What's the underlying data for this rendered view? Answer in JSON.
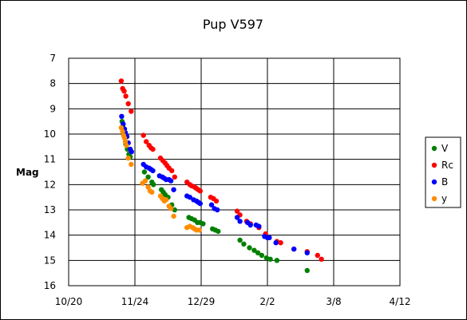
{
  "chart_data": {
    "type": "scatter",
    "title": "Pup V597",
    "xlabel": "",
    "ylabel": "Mag",
    "x_axis": {
      "ticks": [
        "10/20",
        "11/24",
        "12/29",
        "2/2",
        "3/8",
        "4/12"
      ],
      "range_days": [
        0,
        175
      ],
      "tick_step_days": 35
    },
    "y_axis": {
      "inverted": true,
      "ticks": [
        "7",
        "8",
        "9",
        "10",
        "11",
        "12",
        "13",
        "14",
        "15",
        "16"
      ],
      "range": [
        7,
        16
      ]
    },
    "grid": true,
    "legend_position": "right",
    "series": [
      {
        "name": "V",
        "color": "#008000",
        "points": [
          [
            28.2,
            9.5
          ],
          [
            28.6,
            9.7
          ],
          [
            29.0,
            9.9
          ],
          [
            29.5,
            10.1
          ],
          [
            30.2,
            10.4
          ],
          [
            31.0,
            10.6
          ],
          [
            31.8,
            10.8
          ],
          [
            32.5,
            10.9
          ],
          [
            40.0,
            11.5
          ],
          [
            42.0,
            11.7
          ],
          [
            44.0,
            11.9
          ],
          [
            44.8,
            12.0
          ],
          [
            49.0,
            12.2
          ],
          [
            50.0,
            12.3
          ],
          [
            51.0,
            12.4
          ],
          [
            52.5,
            12.5
          ],
          [
            54.5,
            12.8
          ],
          [
            56.0,
            13.0
          ],
          [
            63.5,
            13.3
          ],
          [
            65.0,
            13.35
          ],
          [
            66.5,
            13.4
          ],
          [
            68.0,
            13.5
          ],
          [
            69.5,
            13.5
          ],
          [
            71.0,
            13.55
          ],
          [
            76.0,
            13.75
          ],
          [
            77.5,
            13.8
          ],
          [
            79.0,
            13.85
          ],
          [
            90.5,
            14.2
          ],
          [
            92.5,
            14.35
          ],
          [
            95.5,
            14.5
          ],
          [
            98.0,
            14.6
          ],
          [
            100.0,
            14.7
          ],
          [
            102.0,
            14.8
          ],
          [
            104.5,
            14.9
          ],
          [
            106.5,
            14.95
          ],
          [
            110.0,
            15.0
          ],
          [
            126.0,
            15.4
          ]
        ]
      },
      {
        "name": "Rc",
        "color": "#ff0000",
        "points": [
          [
            27.8,
            7.9
          ],
          [
            28.5,
            8.2
          ],
          [
            29.3,
            8.3
          ],
          [
            30.2,
            8.5
          ],
          [
            31.5,
            8.8
          ],
          [
            33.0,
            9.1
          ],
          [
            39.5,
            10.05
          ],
          [
            41.0,
            10.3
          ],
          [
            42.5,
            10.45
          ],
          [
            43.5,
            10.55
          ],
          [
            44.5,
            10.6
          ],
          [
            48.5,
            10.95
          ],
          [
            49.8,
            11.05
          ],
          [
            51.0,
            11.15
          ],
          [
            52.0,
            11.25
          ],
          [
            53.0,
            11.35
          ],
          [
            54.5,
            11.45
          ],
          [
            56.0,
            11.7
          ],
          [
            62.5,
            11.9
          ],
          [
            64.0,
            12.0
          ],
          [
            65.0,
            12.05
          ],
          [
            66.5,
            12.1
          ],
          [
            67.5,
            12.15
          ],
          [
            68.5,
            12.2
          ],
          [
            69.5,
            12.25
          ],
          [
            75.0,
            12.5
          ],
          [
            76.5,
            12.55
          ],
          [
            78.0,
            12.65
          ],
          [
            89.0,
            13.05
          ],
          [
            90.5,
            13.2
          ],
          [
            94.0,
            13.45
          ],
          [
            96.0,
            13.55
          ],
          [
            100.5,
            13.7
          ],
          [
            104.0,
            13.95
          ],
          [
            110.0,
            14.25
          ],
          [
            112.0,
            14.3
          ],
          [
            119.0,
            14.55
          ],
          [
            126.0,
            14.65
          ],
          [
            131.5,
            14.8
          ],
          [
            133.5,
            14.95
          ]
        ]
      },
      {
        "name": "B",
        "color": "#0000ff",
        "points": [
          [
            28.0,
            9.3
          ],
          [
            28.8,
            9.6
          ],
          [
            29.5,
            9.8
          ],
          [
            30.0,
            9.95
          ],
          [
            30.8,
            10.1
          ],
          [
            31.5,
            10.35
          ],
          [
            32.5,
            10.6
          ],
          [
            33.2,
            10.7
          ],
          [
            39.5,
            11.2
          ],
          [
            41.0,
            11.3
          ],
          [
            42.5,
            11.35
          ],
          [
            43.5,
            11.4
          ],
          [
            44.5,
            11.45
          ],
          [
            48.0,
            11.65
          ],
          [
            49.5,
            11.7
          ],
          [
            50.5,
            11.75
          ],
          [
            51.5,
            11.8
          ],
          [
            53.0,
            11.8
          ],
          [
            54.0,
            11.85
          ],
          [
            55.5,
            12.2
          ],
          [
            62.5,
            12.45
          ],
          [
            64.0,
            12.5
          ],
          [
            66.0,
            12.6
          ],
          [
            67.5,
            12.65
          ],
          [
            68.5,
            12.7
          ],
          [
            69.5,
            12.75
          ],
          [
            75.5,
            12.8
          ],
          [
            77.0,
            12.95
          ],
          [
            78.5,
            13.0
          ],
          [
            89.0,
            13.3
          ],
          [
            90.5,
            13.45
          ],
          [
            94.5,
            13.5
          ],
          [
            96.0,
            13.6
          ],
          [
            99.0,
            13.6
          ],
          [
            100.5,
            13.65
          ],
          [
            103.5,
            14.05
          ],
          [
            105.0,
            14.1
          ],
          [
            106.0,
            14.1
          ],
          [
            109.5,
            14.3
          ],
          [
            119.0,
            14.55
          ],
          [
            126.0,
            14.7
          ]
        ]
      },
      {
        "name": "y",
        "color": "#ff8c00",
        "points": [
          [
            27.8,
            9.75
          ],
          [
            28.5,
            9.9
          ],
          [
            29.0,
            10.05
          ],
          [
            29.5,
            10.15
          ],
          [
            30.0,
            10.3
          ],
          [
            30.5,
            10.45
          ],
          [
            31.5,
            10.95
          ],
          [
            33.0,
            11.2
          ],
          [
            39.0,
            11.95
          ],
          [
            40.5,
            11.85
          ],
          [
            42.0,
            12.1
          ],
          [
            43.0,
            12.25
          ],
          [
            44.0,
            12.3
          ],
          [
            48.5,
            12.45
          ],
          [
            49.5,
            12.55
          ],
          [
            50.5,
            12.65
          ],
          [
            51.5,
            12.6
          ],
          [
            53.0,
            12.85
          ],
          [
            54.0,
            12.95
          ],
          [
            55.5,
            13.25
          ],
          [
            62.5,
            13.7
          ],
          [
            64.0,
            13.65
          ],
          [
            65.5,
            13.7
          ],
          [
            66.5,
            13.75
          ],
          [
            67.5,
            13.8
          ],
          [
            69.0,
            13.8
          ]
        ]
      }
    ]
  }
}
